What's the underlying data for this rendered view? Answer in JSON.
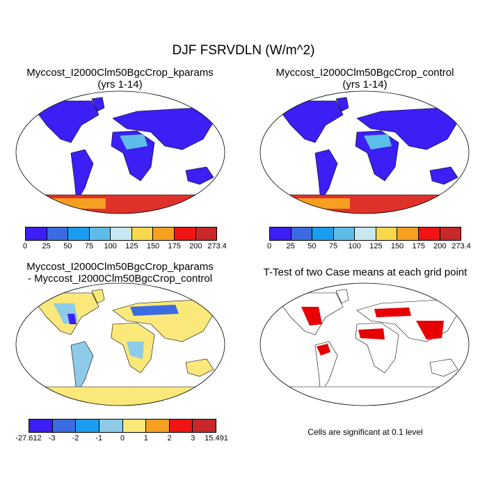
{
  "title": "DJF FSRVDLN (W/m^2)",
  "panels": [
    {
      "title_line1": "Myccost_I2000Clm50BgcCrop_kparams",
      "title_line2": "(yrs 1-14)",
      "kind": "field"
    },
    {
      "title_line1": "Myccost_I2000Clm50BgcCrop_control",
      "title_line2": "(yrs 1-14)",
      "kind": "field"
    },
    {
      "title_line1": "Myccost_I2000Clm50BgcCrop_kparams",
      "title_line2": "- Myccost_I2000Clm50BgcCrop_control",
      "kind": "difference"
    },
    {
      "title_line1": "T-Test of two Case means at each grid point",
      "title_line2": "",
      "kind": "ttest"
    }
  ],
  "colorbar_abs": {
    "labels": [
      "0",
      "25",
      "50",
      "75",
      "100",
      "125",
      "150",
      "175",
      "200",
      "273.4"
    ],
    "colors": [
      "#3b1ff5",
      "#3a6be0",
      "#1a9cf0",
      "#5ebde8",
      "#c8e8f0",
      "#f8d84a",
      "#f5a020",
      "#f01414",
      "#c8282a"
    ]
  },
  "colorbar_diff": {
    "labels": [
      "-27.612",
      "-3",
      "-2",
      "-1",
      "0",
      "1",
      "2",
      "3",
      "15.491"
    ],
    "colors": [
      "#3b1ff5",
      "#3a6be0",
      "#1a9cf0",
      "#8ecbe8",
      "#fbe87a",
      "#f5a020",
      "#f01414",
      "#c8282a"
    ]
  },
  "significance_note": "Cells are significant at 0.1 level",
  "colors": {
    "land_low": "#3b1ff5",
    "land_mid": "#5ebde8",
    "antarctica_hot": "#e0302a",
    "significant": "#e60000",
    "diff_pos": "#fbe87a",
    "diff_neg": "#8ecbe8"
  }
}
